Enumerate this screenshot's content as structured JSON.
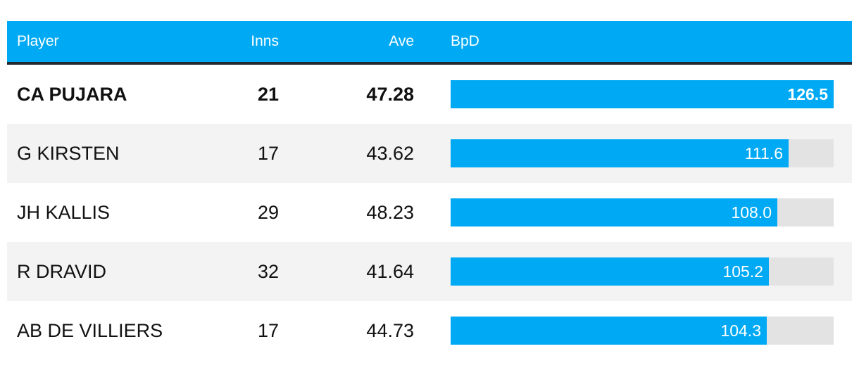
{
  "headers": {
    "player": "Player",
    "inns": "Inns",
    "ave": "Ave",
    "bpd": "BpD"
  },
  "colors": {
    "header_bg": "#00a9f4",
    "bar": "#00a9f4",
    "track": "#e3e3e3",
    "alt_row": "#f3f3f3"
  },
  "chart_data": {
    "type": "bar",
    "categories": [
      "CA PUJARA",
      "G KIRSTEN",
      "JH KALLIS",
      "R DRAVID",
      "AB DE VILLIERS"
    ],
    "series": [
      {
        "name": "BpD",
        "values": [
          126.5,
          111.6,
          108.0,
          105.2,
          104.3
        ]
      }
    ],
    "labels": [
      "126.5",
      "111.6",
      "108.0",
      "105.2",
      "104.3"
    ],
    "xlim": [
      0,
      126.5
    ],
    "title": "",
    "xlabel": "",
    "ylabel": "",
    "legend": "none",
    "grid": false
  },
  "rows": [
    {
      "player": "CA PUJARA",
      "inns": "21",
      "ave": "47.28",
      "bpd": "126.5"
    },
    {
      "player": "G KIRSTEN",
      "inns": "17",
      "ave": "43.62",
      "bpd": "111.6"
    },
    {
      "player": "JH KALLIS",
      "inns": "29",
      "ave": "48.23",
      "bpd": "108.0"
    },
    {
      "player": "R DRAVID",
      "inns": "32",
      "ave": "41.64",
      "bpd": "105.2"
    },
    {
      "player": "AB DE VILLIERS",
      "inns": "17",
      "ave": "44.73",
      "bpd": "104.3"
    }
  ]
}
